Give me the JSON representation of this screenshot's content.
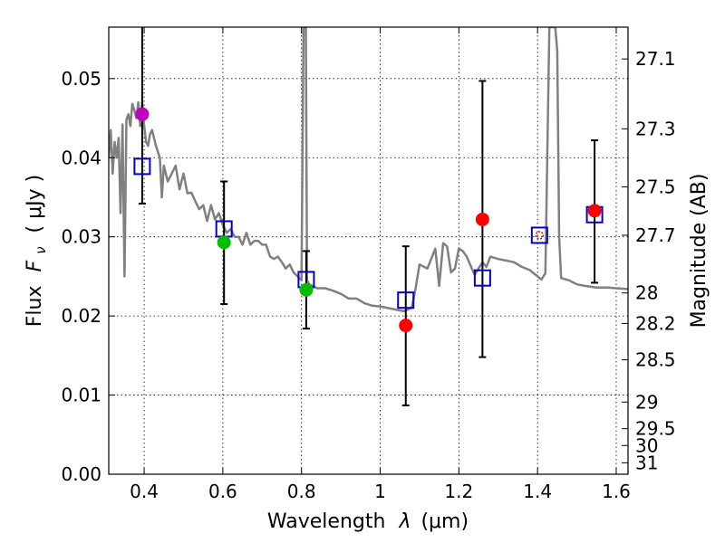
{
  "chart_data": {
    "type": "scatter",
    "xlabel": "Wavelength",
    "xlabel_symbol": "λ",
    "xlabel_unit": "(μm)",
    "ylabel": "Flux",
    "ylabel_symbol": "F",
    "ylabel_subscript": "ν",
    "ylabel_unit": "( μJy )",
    "y2label": "Magnitude (AB)",
    "xlim": [
      0.31,
      1.63
    ],
    "ylim": [
      0.0,
      0.0565
    ],
    "grid": true,
    "x_ticks": [
      0.4,
      0.6,
      0.8,
      1.0,
      1.2,
      1.4,
      1.6
    ],
    "x_tick_labels": [
      "0.4",
      "0.6",
      "0.8",
      "1",
      "1.2",
      "1.4",
      "1.6"
    ],
    "y_ticks": [
      0.0,
      0.01,
      0.02,
      0.03,
      0.04,
      0.05
    ],
    "y_tick_labels": [
      "0.00",
      "0.01",
      "0.02",
      "0.03",
      "0.04",
      "0.05"
    ],
    "mag_ticks": [
      27.1,
      27.3,
      27.5,
      27.7,
      28,
      28.2,
      28.5,
      29,
      29.5,
      30,
      31
    ],
    "mag_tick_labels": [
      "27.1",
      "27.3",
      "27.5",
      "27.7",
      "28",
      "28.2",
      "28.5",
      "29",
      "29.5",
      "30",
      "31"
    ],
    "observed": [
      {
        "x": 0.395,
        "y": 0.0455,
        "err_lo": 0.0113,
        "err_hi": 0.0135,
        "color": "#bf00bf"
      },
      {
        "x": 0.603,
        "y": 0.0293,
        "err_lo": 0.0078,
        "err_hi": 0.0077,
        "color": "#00bf00"
      },
      {
        "x": 0.812,
        "y": 0.0233,
        "err_lo": 0.0049,
        "err_hi": 0.0049,
        "color": "#00bf00"
      },
      {
        "x": 1.065,
        "y": 0.0188,
        "err_lo": 0.0101,
        "err_hi": 0.01,
        "color": "#ff0000"
      },
      {
        "x": 1.26,
        "y": 0.0322,
        "err_lo": 0.0174,
        "err_hi": 0.0175,
        "color": "#ff0000"
      },
      {
        "x": 1.545,
        "y": 0.0333,
        "err_lo": 0.0091,
        "err_hi": 0.0089,
        "color": "#ff0000"
      }
    ],
    "model_points": [
      {
        "x": 0.395,
        "y": 0.0389
      },
      {
        "x": 0.603,
        "y": 0.031
      },
      {
        "x": 0.812,
        "y": 0.0246
      },
      {
        "x": 1.065,
        "y": 0.022
      },
      {
        "x": 1.26,
        "y": 0.0248
      },
      {
        "x": 1.405,
        "y": 0.0302,
        "marker": "red-dot"
      },
      {
        "x": 1.545,
        "y": 0.0328
      }
    ],
    "sed_line": {
      "color": "#808080",
      "x": [
        0.31,
        0.315,
        0.32,
        0.325,
        0.33,
        0.335,
        0.34,
        0.345,
        0.35,
        0.355,
        0.36,
        0.365,
        0.37,
        0.375,
        0.38,
        0.385,
        0.39,
        0.395,
        0.4,
        0.405,
        0.41,
        0.415,
        0.42,
        0.43,
        0.44,
        0.445,
        0.45,
        0.46,
        0.47,
        0.48,
        0.49,
        0.5,
        0.51,
        0.52,
        0.53,
        0.54,
        0.55,
        0.56,
        0.57,
        0.58,
        0.59,
        0.6,
        0.61,
        0.62,
        0.63,
        0.64,
        0.65,
        0.66,
        0.67,
        0.68,
        0.69,
        0.7,
        0.71,
        0.72,
        0.73,
        0.74,
        0.75,
        0.76,
        0.77,
        0.78,
        0.79,
        0.8,
        0.805,
        0.808,
        0.811,
        0.814,
        0.82,
        0.84,
        0.86,
        0.88,
        0.9,
        0.92,
        0.94,
        0.96,
        0.98,
        1.0,
        1.02,
        1.04,
        1.06,
        1.08,
        1.09,
        1.1,
        1.12,
        1.14,
        1.15,
        1.16,
        1.17,
        1.18,
        1.19,
        1.2,
        1.21,
        1.22,
        1.24,
        1.26,
        1.27,
        1.28,
        1.3,
        1.32,
        1.34,
        1.36,
        1.38,
        1.4,
        1.41,
        1.42,
        1.43,
        1.435,
        1.44,
        1.445,
        1.45,
        1.455,
        1.46,
        1.48,
        1.5,
        1.52,
        1.55,
        1.58,
        1.6,
        1.63
      ],
      "y": [
        0.04,
        0.0435,
        0.038,
        0.042,
        0.04,
        0.0425,
        0.033,
        0.0442,
        0.025,
        0.0448,
        0.0455,
        0.044,
        0.0468,
        0.046,
        0.045,
        0.047,
        0.044,
        0.047,
        0.044,
        0.042,
        0.0415,
        0.043,
        0.0435,
        0.0415,
        0.04,
        0.035,
        0.039,
        0.037,
        0.038,
        0.039,
        0.036,
        0.038,
        0.0355,
        0.0356,
        0.0345,
        0.0335,
        0.034,
        0.032,
        0.034,
        0.0322,
        0.033,
        0.0315,
        0.0305,
        0.031,
        0.03,
        0.03,
        0.029,
        0.0305,
        0.029,
        0.0295,
        0.0295,
        0.029,
        0.029,
        0.0275,
        0.0272,
        0.0275,
        0.0268,
        0.026,
        0.0265,
        0.0255,
        0.025,
        0.0245,
        0.0565,
        0.0565,
        0.0565,
        0.0245,
        0.024,
        0.0235,
        0.0235,
        0.0232,
        0.0228,
        0.0222,
        0.0222,
        0.0216,
        0.0213,
        0.0212,
        0.021,
        0.0208,
        0.0206,
        0.021,
        0.0235,
        0.0265,
        0.026,
        0.0285,
        0.0238,
        0.0292,
        0.0288,
        0.0255,
        0.026,
        0.0285,
        0.0282,
        0.0275,
        0.0252,
        0.0268,
        0.0262,
        0.0275,
        0.0272,
        0.027,
        0.0268,
        0.0262,
        0.0258,
        0.025,
        0.0246,
        0.0254,
        0.0565,
        0.0565,
        0.0565,
        0.0565,
        0.0535,
        0.03,
        0.0248,
        0.0245,
        0.024,
        0.0238,
        0.0236,
        0.0236,
        0.0235,
        0.0234
      ]
    }
  }
}
